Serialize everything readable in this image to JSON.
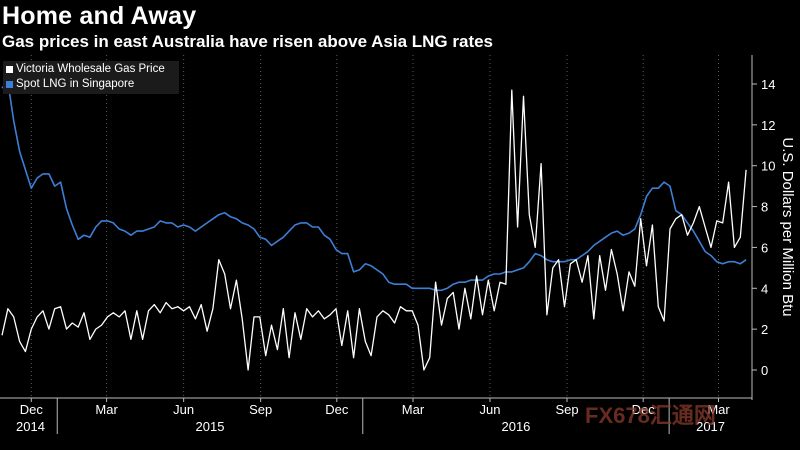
{
  "title": "Home and Away",
  "subtitle": "Gas prices in east Australia have risen above Asia LNG rates",
  "watermark": "FX678汇通网",
  "colors": {
    "background": "#000000",
    "victoria": "#ffffff",
    "lng": "#3d7fd6",
    "grid": "#555555"
  },
  "chart_data": {
    "type": "line",
    "ylabel": "U.S. Dollars per Million Btu",
    "ylim": [
      -1.5,
      15.5
    ],
    "yticks": [
      0,
      2,
      4,
      6,
      8,
      10,
      12,
      14
    ],
    "grid": true,
    "legend": "top-left",
    "x_start": "2014-10-27",
    "x_end": "2017-04-10",
    "month_ticks": [
      {
        "label": "Dec",
        "date": "2014-12-01"
      },
      {
        "label": "Mar",
        "date": "2015-03-01"
      },
      {
        "label": "Jun",
        "date": "2015-06-01"
      },
      {
        "label": "Sep",
        "date": "2015-09-01"
      },
      {
        "label": "Dec",
        "date": "2015-12-01"
      },
      {
        "label": "Mar",
        "date": "2016-03-01"
      },
      {
        "label": "Jun",
        "date": "2016-06-01"
      },
      {
        "label": "Sep",
        "date": "2016-09-01"
      },
      {
        "label": "Dec",
        "date": "2016-12-01"
      },
      {
        "label": "Mar",
        "date": "2017-03-01"
      }
    ],
    "year_ticks": [
      {
        "label": "2014",
        "date": "2014-10-27"
      },
      {
        "label": "2015",
        "date": "2015-01-01"
      },
      {
        "label": "2016",
        "date": "2016-01-01"
      },
      {
        "label": "2017",
        "date": "2017-01-01"
      }
    ],
    "series": [
      {
        "name": "Victoria Wholesale Gas Price",
        "color": "#ffffff",
        "points": [
          [
            "2014-10-27",
            1.7
          ],
          [
            "2014-11-03",
            3.0
          ],
          [
            "2014-11-10",
            2.6
          ],
          [
            "2014-11-17",
            1.4
          ],
          [
            "2014-11-24",
            0.9
          ],
          [
            "2014-12-01",
            2.0
          ],
          [
            "2014-12-08",
            2.6
          ],
          [
            "2014-12-15",
            2.9
          ],
          [
            "2014-12-22",
            2.0
          ],
          [
            "2014-12-29",
            3.0
          ],
          [
            "2015-01-05",
            3.1
          ],
          [
            "2015-01-12",
            2.0
          ],
          [
            "2015-01-19",
            2.3
          ],
          [
            "2015-01-26",
            2.1
          ],
          [
            "2015-02-02",
            2.8
          ],
          [
            "2015-02-09",
            1.5
          ],
          [
            "2015-02-16",
            2.0
          ],
          [
            "2015-02-23",
            2.2
          ],
          [
            "2015-03-02",
            2.6
          ],
          [
            "2015-03-09",
            2.8
          ],
          [
            "2015-03-16",
            2.6
          ],
          [
            "2015-03-23",
            2.9
          ],
          [
            "2015-03-30",
            1.5
          ],
          [
            "2015-04-06",
            2.9
          ],
          [
            "2015-04-13",
            1.5
          ],
          [
            "2015-04-20",
            2.9
          ],
          [
            "2015-04-27",
            3.2
          ],
          [
            "2015-05-04",
            2.8
          ],
          [
            "2015-05-11",
            3.3
          ],
          [
            "2015-05-18",
            3.0
          ],
          [
            "2015-05-25",
            3.1
          ],
          [
            "2015-06-01",
            2.9
          ],
          [
            "2015-06-08",
            3.1
          ],
          [
            "2015-06-15",
            2.5
          ],
          [
            "2015-06-22",
            3.2
          ],
          [
            "2015-06-29",
            1.9
          ],
          [
            "2015-07-06",
            3.0
          ],
          [
            "2015-07-13",
            5.4
          ],
          [
            "2015-07-20",
            4.7
          ],
          [
            "2015-07-27",
            3.0
          ],
          [
            "2015-08-03",
            4.4
          ],
          [
            "2015-08-10",
            2.5
          ],
          [
            "2015-08-17",
            0.0
          ],
          [
            "2015-08-24",
            2.6
          ],
          [
            "2015-08-31",
            2.6
          ],
          [
            "2015-09-07",
            0.7
          ],
          [
            "2015-09-14",
            2.2
          ],
          [
            "2015-09-21",
            1.0
          ],
          [
            "2015-09-28",
            3.0
          ],
          [
            "2015-10-05",
            0.6
          ],
          [
            "2015-10-12",
            2.8
          ],
          [
            "2015-10-19",
            1.5
          ],
          [
            "2015-10-26",
            3.0
          ],
          [
            "2015-11-02",
            2.6
          ],
          [
            "2015-11-09",
            2.9
          ],
          [
            "2015-11-16",
            2.5
          ],
          [
            "2015-11-23",
            2.7
          ],
          [
            "2015-11-30",
            3.0
          ],
          [
            "2015-12-07",
            1.2
          ],
          [
            "2015-12-14",
            2.9
          ],
          [
            "2015-12-21",
            0.6
          ],
          [
            "2015-12-28",
            3.0
          ],
          [
            "2016-01-04",
            1.4
          ],
          [
            "2016-01-11",
            0.7
          ],
          [
            "2016-01-18",
            2.6
          ],
          [
            "2016-01-25",
            2.9
          ],
          [
            "2016-02-01",
            2.7
          ],
          [
            "2016-02-08",
            2.3
          ],
          [
            "2016-02-15",
            3.1
          ],
          [
            "2016-02-22",
            2.9
          ],
          [
            "2016-02-29",
            2.9
          ],
          [
            "2016-03-07",
            2.2
          ],
          [
            "2016-03-14",
            0.0
          ],
          [
            "2016-03-21",
            0.6
          ],
          [
            "2016-03-28",
            4.3
          ],
          [
            "2016-04-04",
            2.2
          ],
          [
            "2016-04-11",
            3.5
          ],
          [
            "2016-04-18",
            3.8
          ],
          [
            "2016-04-25",
            2.0
          ],
          [
            "2016-05-02",
            4.0
          ],
          [
            "2016-05-09",
            2.5
          ],
          [
            "2016-05-16",
            4.6
          ],
          [
            "2016-05-23",
            2.7
          ],
          [
            "2016-05-30",
            4.4
          ],
          [
            "2016-06-06",
            2.9
          ],
          [
            "2016-06-13",
            4.3
          ],
          [
            "2016-06-20",
            4.2
          ],
          [
            "2016-06-27",
            13.7
          ],
          [
            "2016-07-04",
            7.0
          ],
          [
            "2016-07-11",
            13.4
          ],
          [
            "2016-07-18",
            7.6
          ],
          [
            "2016-07-25",
            6.0
          ],
          [
            "2016-08-01",
            10.1
          ],
          [
            "2016-08-08",
            2.7
          ],
          [
            "2016-08-15",
            5.0
          ],
          [
            "2016-08-22",
            5.4
          ],
          [
            "2016-08-29",
            3.1
          ],
          [
            "2016-09-05",
            5.2
          ],
          [
            "2016-09-12",
            5.4
          ],
          [
            "2016-09-19",
            4.3
          ],
          [
            "2016-09-26",
            5.6
          ],
          [
            "2016-10-03",
            2.5
          ],
          [
            "2016-10-10",
            5.6
          ],
          [
            "2016-10-17",
            3.9
          ],
          [
            "2016-10-24",
            5.9
          ],
          [
            "2016-10-31",
            4.7
          ],
          [
            "2016-11-07",
            2.9
          ],
          [
            "2016-11-14",
            4.8
          ],
          [
            "2016-11-21",
            4.1
          ],
          [
            "2016-11-28",
            7.4
          ],
          [
            "2016-12-05",
            5.1
          ],
          [
            "2016-12-12",
            7.1
          ],
          [
            "2016-12-19",
            3.1
          ],
          [
            "2016-12-26",
            2.4
          ],
          [
            "2017-01-02",
            6.9
          ],
          [
            "2017-01-09",
            7.4
          ],
          [
            "2017-01-16",
            7.6
          ],
          [
            "2017-01-23",
            6.6
          ],
          [
            "2017-01-30",
            7.2
          ],
          [
            "2017-02-06",
            8.0
          ],
          [
            "2017-02-13",
            7.0
          ],
          [
            "2017-02-20",
            6.0
          ],
          [
            "2017-02-27",
            7.3
          ],
          [
            "2017-03-06",
            7.2
          ],
          [
            "2017-03-13",
            9.2
          ],
          [
            "2017-03-20",
            6.0
          ],
          [
            "2017-03-27",
            6.5
          ],
          [
            "2017-04-03",
            9.8
          ]
        ]
      },
      {
        "name": "Spot LNG in Singapore",
        "color": "#3d7fd6",
        "points": [
          [
            "2014-10-27",
            13.8
          ],
          [
            "2014-11-03",
            14.1
          ],
          [
            "2014-11-10",
            12.2
          ],
          [
            "2014-11-17",
            10.7
          ],
          [
            "2014-11-24",
            9.8
          ],
          [
            "2014-12-01",
            8.9
          ],
          [
            "2014-12-08",
            9.4
          ],
          [
            "2014-12-15",
            9.6
          ],
          [
            "2014-12-22",
            9.6
          ],
          [
            "2014-12-29",
            9.0
          ],
          [
            "2015-01-05",
            9.2
          ],
          [
            "2015-01-12",
            7.9
          ],
          [
            "2015-01-19",
            7.1
          ],
          [
            "2015-01-26",
            6.4
          ],
          [
            "2015-02-02",
            6.6
          ],
          [
            "2015-02-09",
            6.5
          ],
          [
            "2015-02-16",
            7.0
          ],
          [
            "2015-02-23",
            7.3
          ],
          [
            "2015-03-02",
            7.3
          ],
          [
            "2015-03-09",
            7.2
          ],
          [
            "2015-03-16",
            6.9
          ],
          [
            "2015-03-23",
            6.8
          ],
          [
            "2015-03-30",
            6.6
          ],
          [
            "2015-04-06",
            6.8
          ],
          [
            "2015-04-13",
            6.8
          ],
          [
            "2015-04-20",
            6.9
          ],
          [
            "2015-04-27",
            7.0
          ],
          [
            "2015-05-04",
            7.3
          ],
          [
            "2015-05-11",
            7.2
          ],
          [
            "2015-05-18",
            7.2
          ],
          [
            "2015-05-25",
            7.0
          ],
          [
            "2015-06-01",
            7.1
          ],
          [
            "2015-06-08",
            7.0
          ],
          [
            "2015-06-15",
            6.8
          ],
          [
            "2015-06-22",
            7.0
          ],
          [
            "2015-06-29",
            7.2
          ],
          [
            "2015-07-06",
            7.4
          ],
          [
            "2015-07-13",
            7.6
          ],
          [
            "2015-07-20",
            7.7
          ],
          [
            "2015-07-27",
            7.5
          ],
          [
            "2015-08-03",
            7.4
          ],
          [
            "2015-08-10",
            7.2
          ],
          [
            "2015-08-17",
            7.1
          ],
          [
            "2015-08-24",
            6.9
          ],
          [
            "2015-08-31",
            6.5
          ],
          [
            "2015-09-07",
            6.4
          ],
          [
            "2015-09-14",
            6.1
          ],
          [
            "2015-09-21",
            6.3
          ],
          [
            "2015-09-28",
            6.5
          ],
          [
            "2015-10-05",
            6.8
          ],
          [
            "2015-10-12",
            7.1
          ],
          [
            "2015-10-19",
            7.2
          ],
          [
            "2015-10-26",
            7.2
          ],
          [
            "2015-11-02",
            7.0
          ],
          [
            "2015-11-09",
            7.0
          ],
          [
            "2015-11-16",
            6.6
          ],
          [
            "2015-11-23",
            6.4
          ],
          [
            "2015-11-30",
            5.9
          ],
          [
            "2015-12-07",
            5.7
          ],
          [
            "2015-12-14",
            5.7
          ],
          [
            "2015-12-21",
            4.8
          ],
          [
            "2015-12-28",
            4.9
          ],
          [
            "2016-01-04",
            5.2
          ],
          [
            "2016-01-11",
            5.1
          ],
          [
            "2016-01-18",
            4.9
          ],
          [
            "2016-01-25",
            4.7
          ],
          [
            "2016-02-01",
            4.3
          ],
          [
            "2016-02-08",
            4.2
          ],
          [
            "2016-02-15",
            4.2
          ],
          [
            "2016-02-22",
            4.2
          ],
          [
            "2016-02-29",
            4.0
          ],
          [
            "2016-03-07",
            4.0
          ],
          [
            "2016-03-14",
            4.0
          ],
          [
            "2016-03-21",
            4.0
          ],
          [
            "2016-03-28",
            3.9
          ],
          [
            "2016-04-04",
            3.9
          ],
          [
            "2016-04-11",
            4.0
          ],
          [
            "2016-04-18",
            4.2
          ],
          [
            "2016-04-25",
            4.3
          ],
          [
            "2016-05-02",
            4.3
          ],
          [
            "2016-05-09",
            4.4
          ],
          [
            "2016-05-16",
            4.4
          ],
          [
            "2016-05-23",
            4.4
          ],
          [
            "2016-05-30",
            4.6
          ],
          [
            "2016-06-06",
            4.7
          ],
          [
            "2016-06-13",
            4.7
          ],
          [
            "2016-06-20",
            4.8
          ],
          [
            "2016-06-27",
            4.8
          ],
          [
            "2016-07-04",
            4.9
          ],
          [
            "2016-07-11",
            5.0
          ],
          [
            "2016-07-18",
            5.3
          ],
          [
            "2016-07-25",
            5.7
          ],
          [
            "2016-08-01",
            5.6
          ],
          [
            "2016-08-08",
            5.4
          ],
          [
            "2016-08-15",
            5.3
          ],
          [
            "2016-08-22",
            5.3
          ],
          [
            "2016-08-29",
            5.3
          ],
          [
            "2016-09-05",
            5.4
          ],
          [
            "2016-09-12",
            5.4
          ],
          [
            "2016-09-19",
            5.6
          ],
          [
            "2016-09-26",
            5.8
          ],
          [
            "2016-10-03",
            6.1
          ],
          [
            "2016-10-10",
            6.3
          ],
          [
            "2016-10-17",
            6.5
          ],
          [
            "2016-10-24",
            6.7
          ],
          [
            "2016-10-31",
            6.8
          ],
          [
            "2016-11-07",
            6.6
          ],
          [
            "2016-11-14",
            6.7
          ],
          [
            "2016-11-21",
            6.9
          ],
          [
            "2016-11-28",
            7.6
          ],
          [
            "2016-12-05",
            8.5
          ],
          [
            "2016-12-12",
            8.9
          ],
          [
            "2016-12-19",
            8.9
          ],
          [
            "2016-12-26",
            9.2
          ],
          [
            "2017-01-02",
            9.0
          ],
          [
            "2017-01-09",
            7.8
          ],
          [
            "2017-01-16",
            7.6
          ],
          [
            "2017-01-23",
            7.2
          ],
          [
            "2017-01-30",
            6.8
          ],
          [
            "2017-02-06",
            6.3
          ],
          [
            "2017-02-13",
            5.8
          ],
          [
            "2017-02-20",
            5.6
          ],
          [
            "2017-02-27",
            5.3
          ],
          [
            "2017-03-06",
            5.2
          ],
          [
            "2017-03-13",
            5.3
          ],
          [
            "2017-03-20",
            5.3
          ],
          [
            "2017-03-27",
            5.2
          ],
          [
            "2017-04-03",
            5.4
          ]
        ]
      }
    ]
  }
}
